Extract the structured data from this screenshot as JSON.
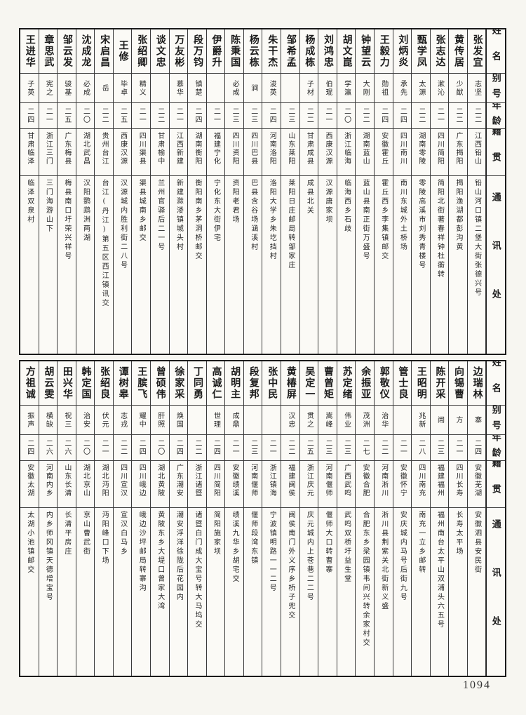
{
  "page_number": "1094",
  "column_headers": {
    "name": "姓名",
    "alias": "别号",
    "age": "年龄",
    "origin": "籍贯",
    "address": "通讯处"
  },
  "tables": [
    {
      "people": [
        {
          "name": "张发宜",
          "alias": "志坚",
          "age": "二二",
          "origin": "江西铅山",
          "address": "铅山河口镇二堡大街张德兴号"
        },
        {
          "name": "黄传居",
          "alias": "少猷",
          "age": "二二",
          "origin": "广东揭阳",
          "address": "揭阳渔湖都彭沟黄"
        },
        {
          "name": "张志达",
          "alias": "漱沁",
          "age": "二一",
          "origin": "四川简阳",
          "address": "简阳北街著春祥钟杜蘅转"
        },
        {
          "name": "甄学凤",
          "alias": "太源",
          "age": "二二",
          "origin": "湖南零陵",
          "address": "零陵高溪市刘秀青楼号"
        },
        {
          "name": "刘炳炎",
          "alias": "承先",
          "age": "二四",
          "origin": "四川南川",
          "address": "南川东城外土桥场"
        },
        {
          "name": "王毅力",
          "alias": "勋祖",
          "age": "二四",
          "origin": "安徽霍丘",
          "address": "霍丘西乡李集镇邮交"
        },
        {
          "name": "钟望云",
          "alias": "大刚",
          "age": "二二",
          "origin": "湖南蓝山",
          "address": "蓝山县南正街万盛号"
        },
        {
          "name": "胡文崑",
          "alias": "学瀛",
          "age": "二〇",
          "origin": "浙江临海",
          "address": "临海西乡石歧"
        },
        {
          "name": "刘鸿忠",
          "alias": "伯琨",
          "age": "二一",
          "origin": "西康汉源",
          "address": "汉源唐家坝"
        },
        {
          "name": "杨成栋",
          "alias": "子材",
          "age": "二二",
          "origin": "甘肃成县",
          "address": "成县北关"
        },
        {
          "name": "邹希孟",
          "alias": "",
          "age": "二三",
          "origin": "山东莱阳",
          "address": "莱阳日庄邮局转邹家庄"
        },
        {
          "name": "朱干杰",
          "alias": "浚英",
          "age": "二四",
          "origin": "河南洛阳",
          "address": "洛阳大学乡朱圪挡村"
        },
        {
          "name": "杨云栋",
          "alias": "涧",
          "age": "二三",
          "origin": "四川巴县",
          "address": "巴县含谷场涵溪村"
        },
        {
          "name": "陈秉国",
          "alias": "必成",
          "age": "二三",
          "origin": "四川资阳",
          "address": "资阳老君场"
        },
        {
          "name": "伊爵升",
          "alias": "",
          "age": "二一",
          "origin": "福建宁化",
          "address": "宁化东大街伊宅"
        },
        {
          "name": "段万钧",
          "alias": "镇楚",
          "age": "二四",
          "origin": "湖南衡阳",
          "address": "衡阳南乡茅洞桥邮交"
        },
        {
          "name": "万友彬",
          "alias": "慕华",
          "age": "二一",
          "origin": "江西新建",
          "address": "新建滁溇镇城头村"
        },
        {
          "name": "谈文忠",
          "alias": "",
          "age": "二二",
          "origin": "甘肃榆中",
          "address": "兰州官驿后二一号"
        },
        {
          "name": "张绍卿",
          "alias": "精义",
          "age": "二一",
          "origin": "四川渠县",
          "address": "渠县城南乡邮交"
        },
        {
          "name": "王修",
          "alias": "毕卓",
          "age": "二五",
          "origin": "西康汉源",
          "address": "汉源城内胜利街二八号"
        },
        {
          "name": "宋启昌",
          "alias": "岳",
          "age": "二二",
          "origin": "贵州台江",
          "address": "台江(丹江)第五区西江镇讯交"
        },
        {
          "name": "沈成龙",
          "alias": "必成",
          "age": "二〇",
          "origin": "湖北武昌",
          "address": "汉阳鹦鹉洲两湖"
        },
        {
          "name": "邹云发",
          "alias": "骏基",
          "age": "二五",
          "origin": "广东梅县",
          "address": "梅县南口圩荣兴祥号"
        },
        {
          "name": "章思武",
          "alias": "宪之",
          "age": "二一",
          "origin": "浙江三门",
          "address": "三门海游山下"
        },
        {
          "name": "王进华",
          "alias": "子英",
          "age": "二四",
          "origin": "甘肃临泽",
          "address": "临泽双泉村"
        }
      ]
    },
    {
      "people": [
        {
          "name": "边瑞林",
          "alias": "寨",
          "age": "二四",
          "origin": "安徽芜湖",
          "address": "安徽泗县安民街"
        },
        {
          "name": "向锡曹",
          "alias": "方",
          "age": "二一",
          "origin": "四川长寿",
          "address": "长寿太平场"
        },
        {
          "name": "陈开采",
          "alias": "闿",
          "age": "二三",
          "origin": "福建福州",
          "address": "福州南台太平山双浦头六五号"
        },
        {
          "name": "王昭明",
          "alias": "兆新",
          "age": "二八",
          "origin": "四川南充",
          "address": "南充一立乡邮转"
        },
        {
          "name": "管士良",
          "alias": "",
          "age": "二一",
          "origin": "安徽怀宁",
          "address": "安庆城内马号后街九号"
        },
        {
          "name": "郭敬仪",
          "alias": "治华",
          "age": "二二",
          "origin": "河南淅川",
          "address": "淅川县荆紫关北街新义盛"
        },
        {
          "name": "余振亚",
          "alias": "茂洲",
          "age": "二七",
          "origin": "安徽合肥",
          "address": "合肥东乡梁园镇韦间兴转余家村交"
        },
        {
          "name": "苏定绪",
          "alias": "伟业",
          "age": "二三",
          "origin": "广西武鸣",
          "address": "武鸣双桥圩益生堂"
        },
        {
          "name": "曹曾矩",
          "alias": "嵩峰",
          "age": "二三",
          "origin": "河南偃师",
          "address": "偃师大口转曹寨"
        },
        {
          "name": "吴定一",
          "alias": "贯之",
          "age": "二五",
          "origin": "浙江庆元",
          "address": "庆元城内上苍巷二二号"
        },
        {
          "name": "黄椿屏",
          "alias": "汉忠",
          "age": "二二",
          "origin": "福建闽侯",
          "address": "闽侯南门外义序乡桥子兜交"
        },
        {
          "name": "张中民",
          "alias": "",
          "age": "二一",
          "origin": "浙江镇海",
          "address": "宁波镇明路一一二号"
        },
        {
          "name": "段复邦",
          "alias": "",
          "age": "二三",
          "origin": "河南偃师",
          "address": "偃师段湾东镇"
        },
        {
          "name": "胡明主",
          "alias": "成鼎",
          "age": "二一",
          "origin": "安徽绩溪",
          "address": "绩溪九华乡胡宅交"
        },
        {
          "name": "高诚仁",
          "alias": "世理",
          "age": "二四",
          "origin": "四川简阳",
          "address": "简阳施家坝"
        },
        {
          "name": "丁同勇",
          "alias": "",
          "age": "二二",
          "origin": "浙江诸暨",
          "address": "诸暨白门成大宝号转大马坞交"
        },
        {
          "name": "徐家采",
          "alias": "焕国",
          "age": "二四",
          "origin": "广东潮安",
          "address": "潮安浮洋徐陇后花园内"
        },
        {
          "name": "曾硕伟",
          "alias": "肝照",
          "age": "二〇",
          "origin": "湖北黄陂",
          "address": "黄陂东乡大堤口曾家大湾"
        },
        {
          "name": "王膑飞",
          "alias": "耀中",
          "age": "二四",
          "origin": "四川峨边",
          "address": "峨边沙坪邮局转寨沟"
        },
        {
          "name": "谭树皋",
          "alias": "志戎",
          "age": "二二",
          "origin": "四川宣汉",
          "address": "宣汉白马乡"
        },
        {
          "name": "张绍良",
          "alias": "伏元",
          "age": "二一",
          "origin": "湖北沔阳",
          "address": "沔阳峰口下场"
        },
        {
          "name": "韩定国",
          "alias": "治安",
          "age": "二〇",
          "origin": "湖北京山",
          "address": "京山曹武街"
        },
        {
          "name": "田兴华",
          "alias": "祝三",
          "age": "二六",
          "origin": "山东长清",
          "address": "长清平房庄"
        },
        {
          "name": "胡云雯",
          "alias": "横缺",
          "age": "二六",
          "origin": "河南内乡",
          "address": "内乡师冈镇天德增宝号"
        },
        {
          "name": "方祖诚",
          "alias": "振声",
          "age": "二四",
          "origin": "安徽太湖",
          "address": "太湖小池镇邮交"
        }
      ]
    }
  ]
}
